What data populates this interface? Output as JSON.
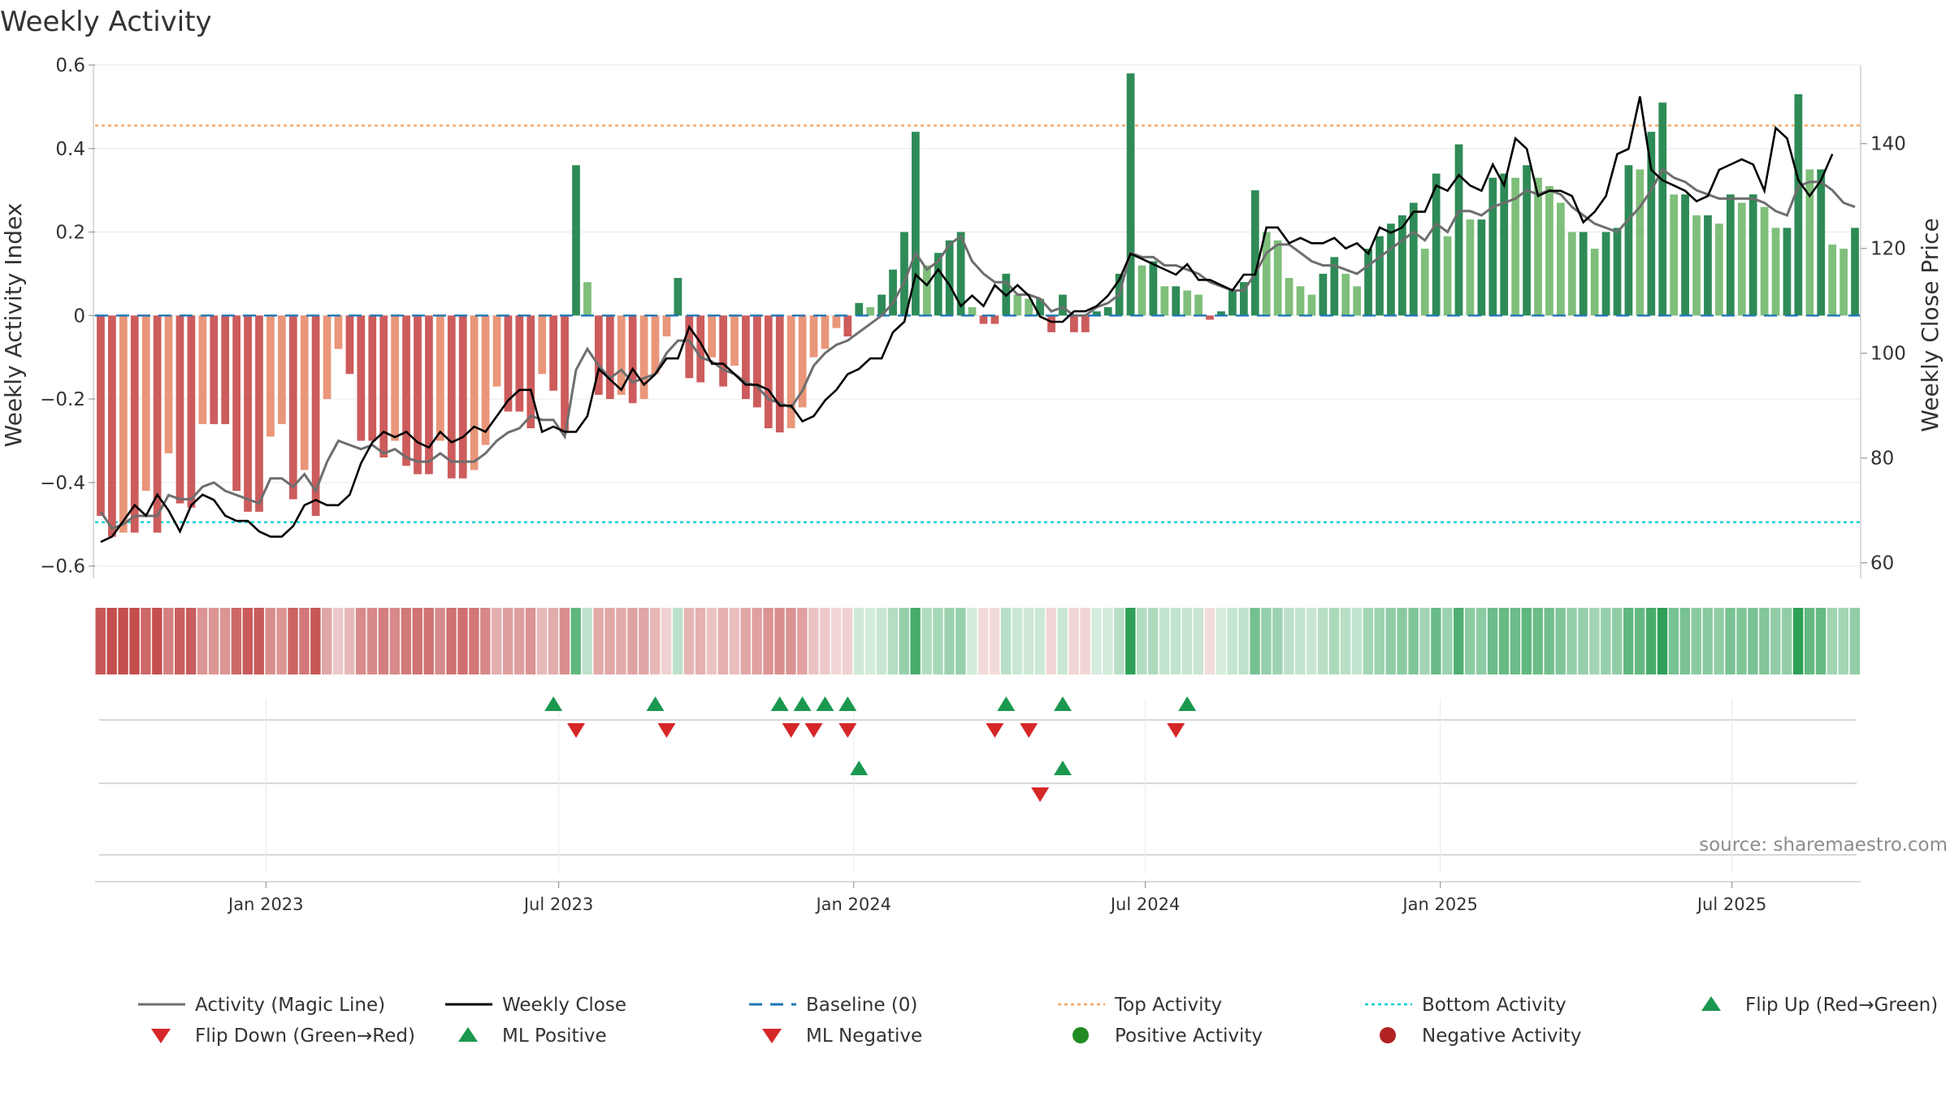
{
  "chart_data": {
    "type": "bar",
    "title": "Weekly Activity",
    "ylabel": "Weekly Activity Index",
    "y2label": "Weekly Close Price",
    "ylim": [
      -0.63,
      0.6
    ],
    "y2lim": [
      57,
      155
    ],
    "yticks": [
      0.6,
      0.4,
      0.2,
      0,
      -0.2,
      -0.4,
      -0.6
    ],
    "ytick_labels": [
      "0.6",
      "0.4",
      "0.2",
      "0",
      "−0.2",
      "−0.4",
      "−0.6"
    ],
    "y2ticks": [
      140,
      120,
      100,
      80,
      60
    ],
    "y2tick_labels": [
      "140",
      "120",
      "100",
      "80",
      "60"
    ],
    "top_activity": 0.455,
    "bottom_activity": -0.495,
    "x_range": [
      0,
      155
    ],
    "xticks": [
      {
        "label": "Jan 2023",
        "week": 15
      },
      {
        "label": "Jul 2023",
        "week": 40.7
      },
      {
        "label": "Jan 2024",
        "week": 66.6
      },
      {
        "label": "Jul 2024",
        "week": 92.2
      },
      {
        "label": "Jan 2025",
        "week": 118.1
      },
      {
        "label": "Jul 2025",
        "week": 143.7
      }
    ],
    "activity": [
      -0.48,
      -0.53,
      -0.52,
      -0.52,
      -0.42,
      -0.52,
      -0.33,
      -0.45,
      -0.46,
      -0.26,
      -0.26,
      -0.26,
      -0.42,
      -0.47,
      -0.47,
      -0.29,
      -0.26,
      -0.44,
      -0.37,
      -0.48,
      -0.2,
      -0.08,
      -0.14,
      -0.3,
      -0.3,
      -0.34,
      -0.3,
      -0.36,
      -0.38,
      -0.38,
      -0.3,
      -0.39,
      -0.39,
      -0.37,
      -0.31,
      -0.17,
      -0.23,
      -0.23,
      -0.27,
      -0.14,
      -0.18,
      -0.28,
      0.36,
      0.08,
      -0.19,
      -0.2,
      -0.19,
      -0.21,
      -0.2,
      -0.14,
      -0.05,
      0.09,
      -0.15,
      -0.16,
      -0.1,
      -0.17,
      -0.12,
      -0.2,
      -0.22,
      -0.27,
      -0.28,
      -0.27,
      -0.22,
      -0.1,
      -0.08,
      -0.03,
      -0.05,
      0.03,
      0.02,
      0.05,
      0.11,
      0.2,
      0.44,
      0.12,
      0.15,
      0.18,
      0.2,
      0.02,
      -0.02,
      -0.02,
      0.1,
      0.05,
      0.04,
      0.04,
      -0.04,
      0.05,
      -0.04,
      -0.04,
      0.01,
      0.02,
      0.1,
      0.58,
      0.12,
      0.13,
      0.07,
      0.07,
      0.06,
      0.05,
      -0.01,
      0.01,
      0.06,
      0.08,
      0.3,
      0.2,
      0.18,
      0.09,
      0.07,
      0.05,
      0.1,
      0.14,
      0.1,
      0.07,
      0.16,
      0.19,
      0.22,
      0.24,
      0.27,
      0.16,
      0.34,
      0.19,
      0.41,
      0.23,
      0.23,
      0.33,
      0.34,
      0.33,
      0.36,
      0.33,
      0.31,
      0.27,
      0.2,
      0.2,
      0.16,
      0.2,
      0.21,
      0.36,
      0.35,
      0.44,
      0.51,
      0.29,
      0.29,
      0.24,
      0.24,
      0.22,
      0.29,
      0.27,
      0.29,
      0.26,
      0.21,
      0.21,
      0.53,
      0.35,
      0.35,
      0.17,
      0.16,
      0.21
    ],
    "magic_line": [
      -0.47,
      -0.51,
      -0.5,
      -0.48,
      -0.48,
      -0.48,
      -0.43,
      -0.44,
      -0.44,
      -0.41,
      -0.4,
      -0.42,
      -0.43,
      -0.44,
      -0.45,
      -0.39,
      -0.39,
      -0.41,
      -0.38,
      -0.42,
      -0.35,
      -0.3,
      -0.31,
      -0.32,
      -0.31,
      -0.33,
      -0.32,
      -0.34,
      -0.35,
      -0.35,
      -0.33,
      -0.35,
      -0.35,
      -0.35,
      -0.33,
      -0.3,
      -0.28,
      -0.27,
      -0.24,
      -0.25,
      -0.25,
      -0.29,
      -0.13,
      -0.08,
      -0.12,
      -0.15,
      -0.13,
      -0.16,
      -0.15,
      -0.14,
      -0.09,
      -0.06,
      -0.06,
      -0.1,
      -0.11,
      -0.13,
      -0.14,
      -0.16,
      -0.17,
      -0.2,
      -0.21,
      -0.22,
      -0.18,
      -0.12,
      -0.09,
      -0.07,
      -0.06,
      -0.04,
      -0.02,
      0.0,
      0.03,
      0.08,
      0.15,
      0.11,
      0.13,
      0.17,
      0.19,
      0.13,
      0.1,
      0.08,
      0.08,
      0.05,
      0.05,
      0.04,
      0.01,
      0.02,
      0.0,
      0.0,
      0.02,
      0.03,
      0.05,
      0.15,
      0.14,
      0.14,
      0.12,
      0.12,
      0.11,
      0.1,
      0.08,
      0.07,
      0.06,
      0.06,
      0.1,
      0.15,
      0.17,
      0.17,
      0.15,
      0.13,
      0.12,
      0.12,
      0.11,
      0.1,
      0.12,
      0.14,
      0.16,
      0.18,
      0.2,
      0.18,
      0.22,
      0.2,
      0.25,
      0.25,
      0.24,
      0.26,
      0.27,
      0.28,
      0.3,
      0.29,
      0.3,
      0.29,
      0.26,
      0.24,
      0.22,
      0.21,
      0.2,
      0.23,
      0.26,
      0.3,
      0.35,
      0.33,
      0.32,
      0.3,
      0.29,
      0.28,
      0.28,
      0.28,
      0.28,
      0.27,
      0.25,
      0.24,
      0.31,
      0.32,
      0.32,
      0.3,
      0.27,
      0.26
    ],
    "weekly_close": [
      64,
      65,
      68,
      71,
      69,
      73,
      70,
      66,
      71,
      73,
      72,
      69,
      68,
      68,
      66,
      65,
      65,
      67,
      71,
      72,
      71,
      71,
      73,
      79,
      83,
      85,
      84,
      85,
      83,
      82,
      85,
      83,
      84,
      86,
      85,
      88,
      91,
      93,
      93,
      85,
      86,
      85,
      85,
      88,
      97,
      95,
      93,
      97,
      94,
      96,
      99,
      99,
      105,
      102,
      98,
      98,
      96,
      94,
      94,
      93,
      90,
      90,
      87,
      88,
      91,
      93,
      96,
      97,
      99,
      99,
      104,
      106,
      115,
      113,
      116,
      113,
      109,
      111,
      109,
      113,
      111,
      113,
      111,
      107,
      106,
      106,
      108,
      108,
      109,
      111,
      114,
      119,
      118,
      117,
      116,
      115,
      117,
      114,
      114,
      113,
      112,
      115,
      115,
      124,
      124,
      121,
      122,
      121,
      121,
      122,
      120,
      121,
      119,
      124,
      123,
      124,
      127,
      127,
      132,
      131,
      134,
      132,
      131,
      136,
      132,
      141,
      139,
      130,
      131,
      131,
      130,
      125,
      127,
      130,
      138,
      139,
      149,
      135,
      133,
      132,
      131,
      129,
      130,
      135,
      136,
      137,
      136,
      131,
      143,
      141,
      133,
      130,
      133,
      138
    ]
  },
  "flip_markers": {
    "ml_positive_up": [
      40,
      49,
      60,
      62,
      64,
      66,
      80,
      85,
      96
    ],
    "flip_down": [
      42,
      50,
      61,
      63,
      66,
      79,
      82,
      95
    ],
    "ml_row_up": [
      67,
      85
    ],
    "ml_row_down": [
      83
    ]
  },
  "source": "source: sharemaestro.com",
  "legend": [
    {
      "label": "Activity (Magic Line)"
    },
    {
      "label": "Weekly Close"
    },
    {
      "label": "Baseline (0)"
    },
    {
      "label": "Top Activity"
    },
    {
      "label": "Bottom Activity"
    },
    {
      "label": "Flip Up (Red→Green)"
    },
    {
      "label": "Flip Down (Green→Red)"
    },
    {
      "label": "ML Positive"
    },
    {
      "label": "ML Negative"
    },
    {
      "label": "Positive Activity"
    },
    {
      "label": "Negative Activity"
    }
  ],
  "colors": {
    "pos_dark": "#2e8b57",
    "pos_light": "#7fbf7b",
    "neg_dark": "#cd5c5c",
    "neg_light": "#e9967a",
    "magic_line": "#6e6e6e",
    "close": "#000000",
    "baseline": "#1f77b4",
    "top": "#f4a460",
    "bottom": "#00ced1",
    "flip_up": "#1a9850",
    "flip_down": "#d62728",
    "pos_dot": "#228b22",
    "neg_dot": "#b22222"
  }
}
